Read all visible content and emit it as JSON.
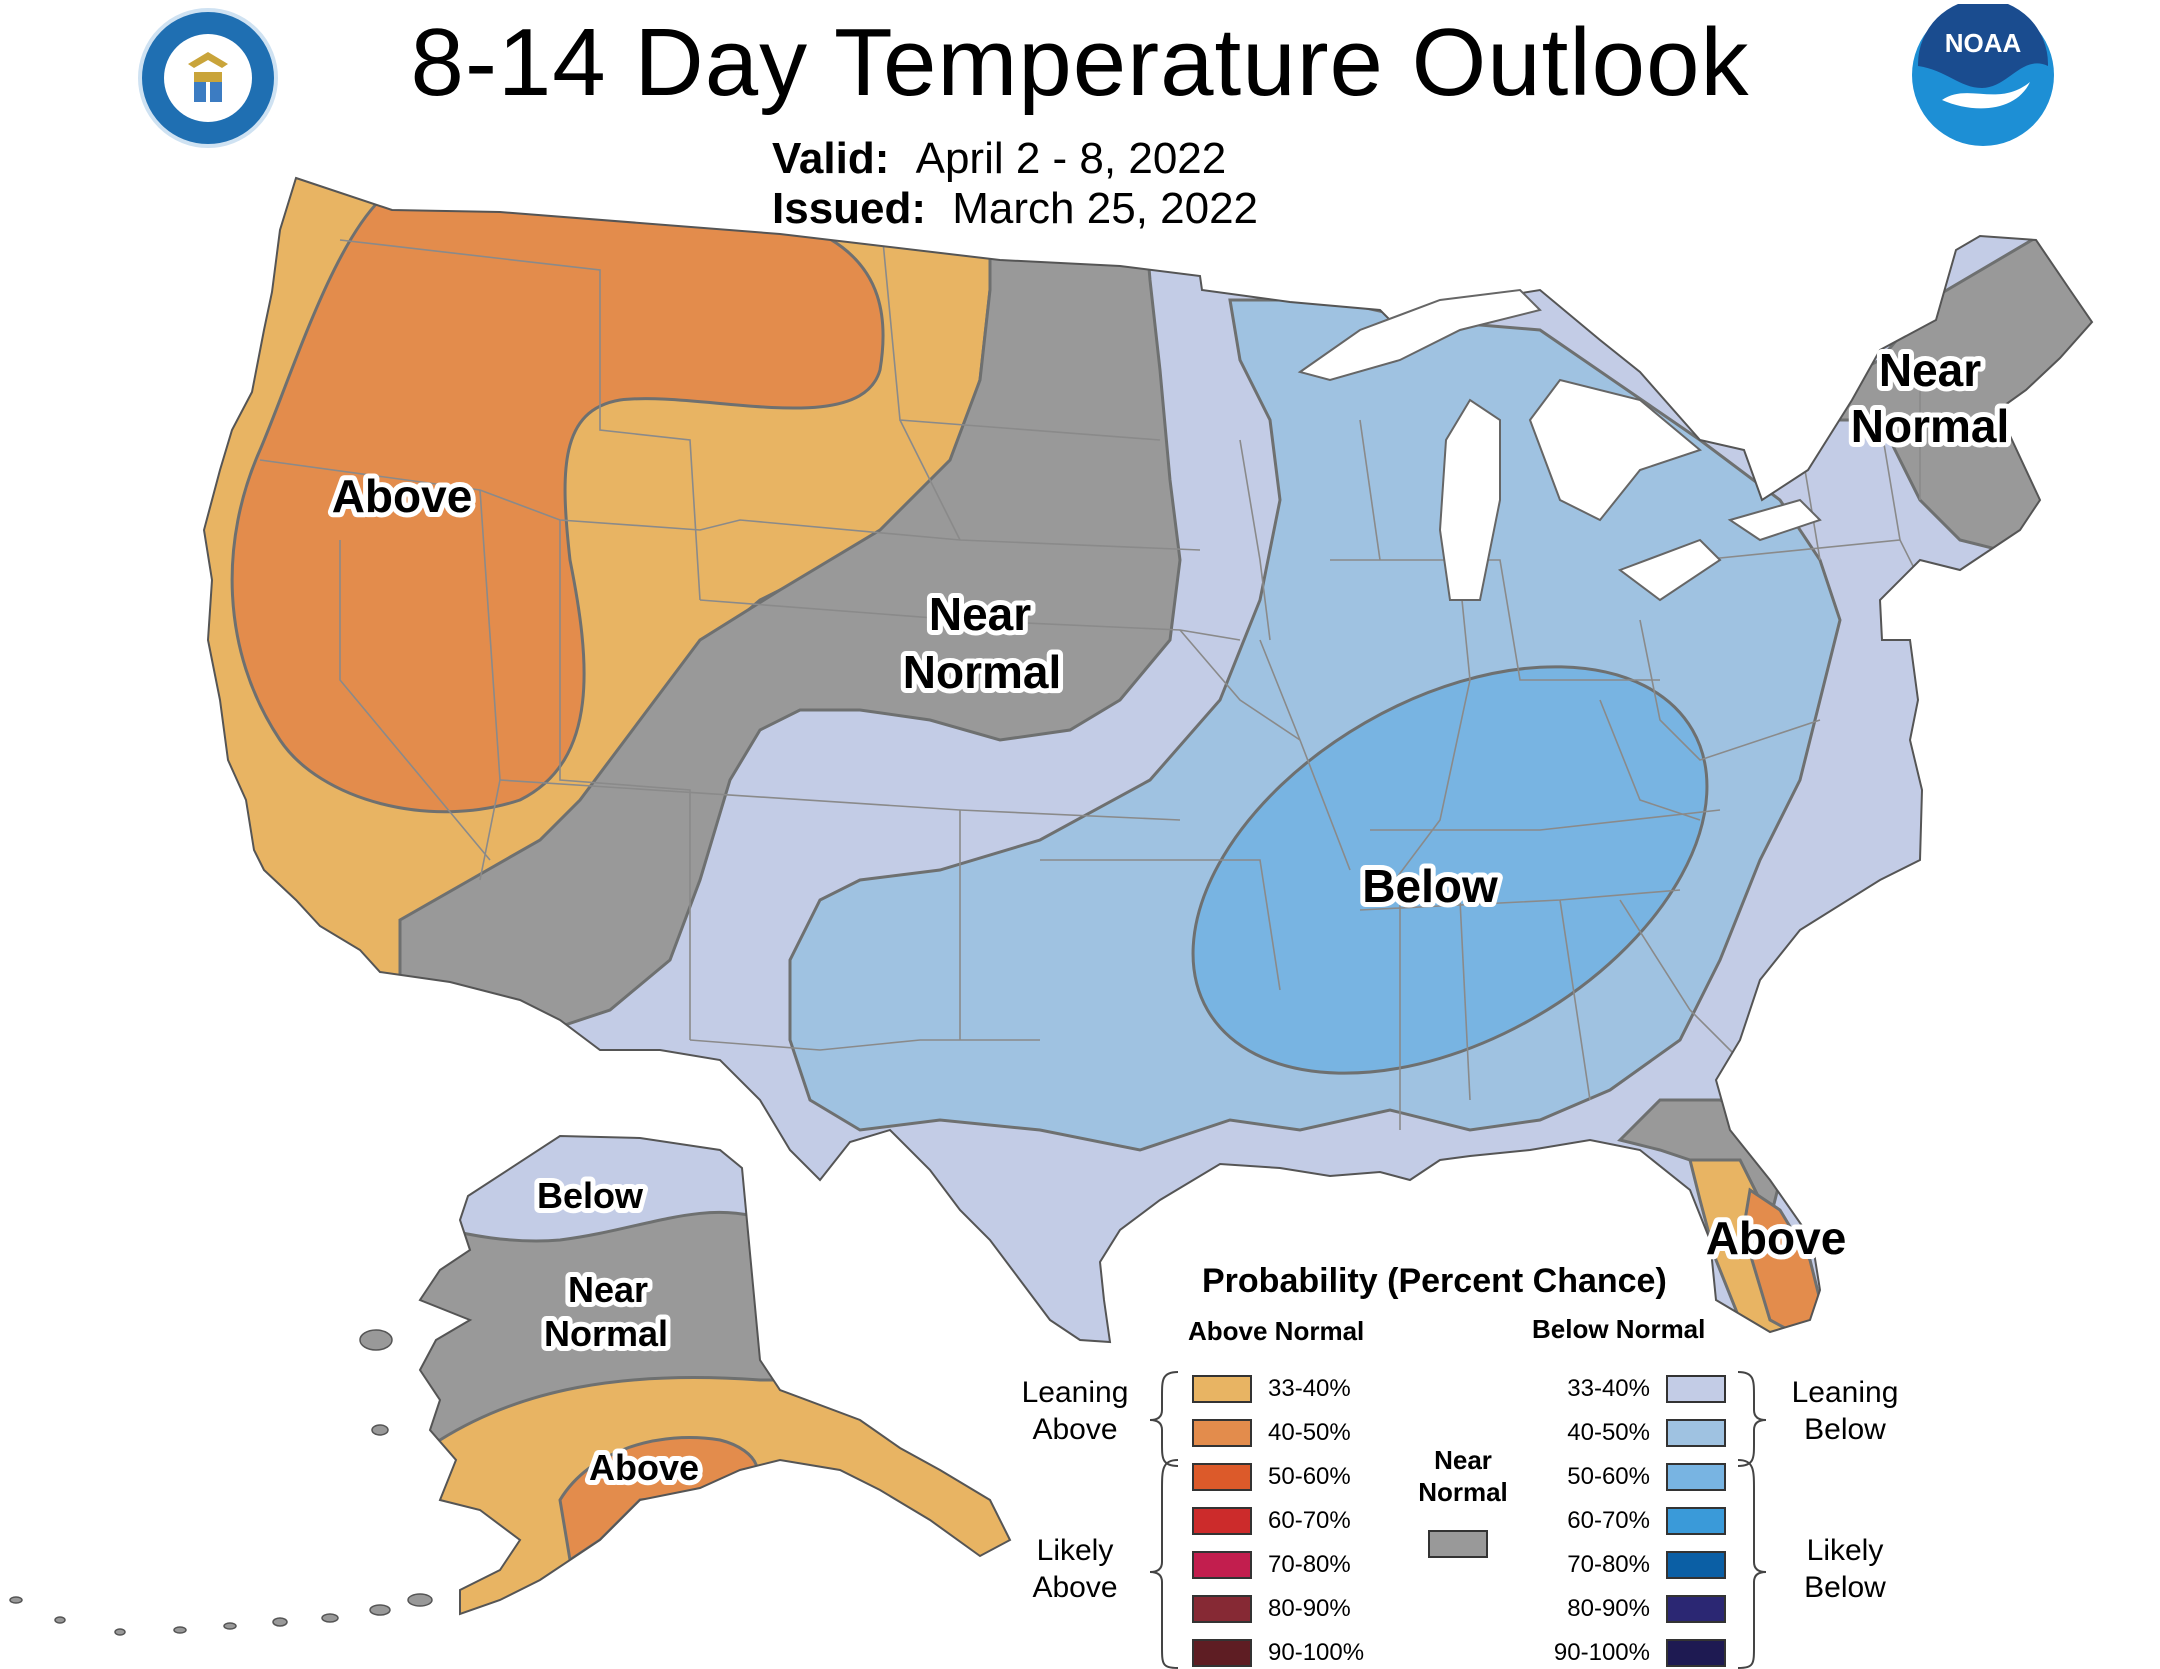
{
  "title": "8-14 Day Temperature Outlook",
  "valid_label": "Valid:",
  "valid_value": "April 2 - 8, 2022",
  "issued_label": "Issued:",
  "issued_value": "March 25, 2022",
  "logos": {
    "left": "department-of-commerce-seal",
    "right": "noaa-logo",
    "noaa_text": "NOAA"
  },
  "map_labels": {
    "west_above": "Above",
    "plains_near_1": "Near",
    "plains_near_2": "Normal",
    "northeast_near_1": "Near",
    "northeast_near_2": "Normal",
    "southeast_below": "Below",
    "florida_above": "Above",
    "alaska_below": "Below",
    "alaska_near_1": "Near",
    "alaska_near_2": "Normal",
    "alaska_above": "Above"
  },
  "legend": {
    "title": "Probability (Percent Chance)",
    "above_header": "Above Normal",
    "below_header": "Below Normal",
    "near_label_1": "Near",
    "near_label_2": "Normal",
    "near_color": "#999999",
    "leaning_above_1": "Leaning",
    "leaning_above_2": "Above",
    "likely_above_1": "Likely",
    "likely_above_2": "Above",
    "leaning_below_1": "Leaning",
    "leaning_below_2": "Below",
    "likely_below_1": "Likely",
    "likely_below_2": "Below",
    "above": [
      {
        "range": "33-40%",
        "color": "#e8b463"
      },
      {
        "range": "40-50%",
        "color": "#e38c4c"
      },
      {
        "range": "50-60%",
        "color": "#dc5a2a"
      },
      {
        "range": "60-70%",
        "color": "#cc2b2b"
      },
      {
        "range": "70-80%",
        "color": "#c21e4e"
      },
      {
        "range": "80-90%",
        "color": "#862934"
      },
      {
        "range": "90-100%",
        "color": "#5e1d23"
      }
    ],
    "below": [
      {
        "range": "33-40%",
        "color": "#c3cce6"
      },
      {
        "range": "40-50%",
        "color": "#9fc2e1"
      },
      {
        "range": "50-60%",
        "color": "#78b4e2"
      },
      {
        "range": "60-70%",
        "color": "#3a9ad9"
      },
      {
        "range": "70-80%",
        "color": "#0b5fa5"
      },
      {
        "range": "80-90%",
        "color": "#2b2773"
      },
      {
        "range": "90-100%",
        "color": "#1e1a52"
      }
    ]
  },
  "colors": {
    "above_33_40": "#e8b463",
    "above_40_50": "#e38c4c",
    "near_normal": "#999999",
    "below_33_40": "#c3cce6",
    "below_40_50": "#9fc2e1",
    "below_50_60": "#78b4e2",
    "outline": "#6e7070"
  }
}
